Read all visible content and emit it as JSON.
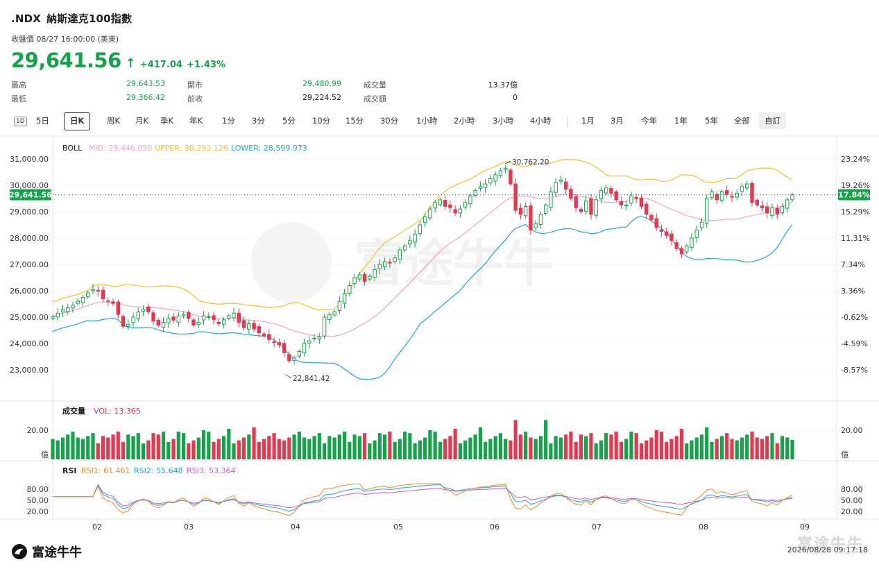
{
  "header": {
    "symbol": ".NDX",
    "name": "納斯達克100指數",
    "close_info": "收盤價 08/27 16:00:00 (美東)",
    "price": "29,641.56",
    "change": "+417.04",
    "change_pct": "+1.43%",
    "arrow": "↑"
  },
  "stats": {
    "high_label": "最高",
    "high": "29,643.53",
    "low_label": "最低",
    "low": "29,366.42",
    "open_label": "開市",
    "open": "29,480.99",
    "prev_label": "前收",
    "prev": "29,224.52",
    "vol_label": "成交量",
    "vol": "13.37億",
    "amt_label": "成交額",
    "amt": "0"
  },
  "tabs": {
    "icon": "1D",
    "items": [
      "5日",
      "日K",
      "周K",
      "月K",
      "季K",
      "年K",
      "1分",
      "3分",
      "5分",
      "10分",
      "15分",
      "30分",
      "1小時",
      "2小時",
      "3小時",
      "4小時",
      "1月",
      "3月",
      "今年",
      "1年",
      "5年",
      "全部",
      "自訂"
    ],
    "selected": "日K"
  },
  "colors": {
    "up": "#15a34a",
    "down": "#e8364e",
    "mid": "#f3a3c0",
    "upper": "#f2c02a",
    "lower": "#1ea5d6",
    "rsi1": "#f08a24",
    "rsi2": "#1ea5d6",
    "rsi3": "#c25ad8"
  },
  "labels": {
    "boll": "BOLL",
    "mid": "MID: 29,446.050",
    "upper": "UPPER: 30,292.126",
    "lower": "LOWER: 28,599.973",
    "vol_title": "成交量",
    "vol_value": "VOL: 13.365",
    "rsi": "RSI",
    "rsi1": "RSI1: 61.461",
    "rsi2": "RSI2: 55.648",
    "rsi3": "RSI3: 53.364",
    "max_note": "30,762.20",
    "min_note": "22,841.42",
    "cur_price_tag": "29,641.56",
    "cur_pct_tag": "17.84%",
    "vol_unit": "億"
  },
  "footer": {
    "logo": "富途牛牛",
    "timestamp": "2026/08/28 09:17:18",
    "watermark": "富途牛牛"
  },
  "chart_data": {
    "type": "candlestick",
    "y_ticks": [
      "31,000.00",
      "30,000.00",
      "29,000.00",
      "28,000.00",
      "27,000.00",
      "26,000.00",
      "25,000.00",
      "24,000.00",
      "23,000.00"
    ],
    "y_tick_values": [
      31000,
      30000,
      29000,
      28000,
      27000,
      26000,
      25000,
      24000,
      23000
    ],
    "pct_ticks": [
      "23.24%",
      "19.26%",
      "15.29%",
      "11.31%",
      "7.34%",
      "3.36%",
      "-0.62%",
      "-4.59%",
      "-8.57%"
    ],
    "ylim": [
      22500,
      31400
    ],
    "x_ticks": [
      "02",
      "03",
      "04",
      "05",
      "06",
      "07",
      "08",
      "09"
    ],
    "vol_ticks": [
      "20.00"
    ],
    "rsi_ticks": [
      "80.00",
      "50.00",
      "20.00"
    ],
    "closes": [
      25020,
      25150,
      25280,
      25350,
      25450,
      25600,
      25750,
      25920,
      26050,
      25980,
      25700,
      25600,
      25520,
      25100,
      24650,
      24720,
      25000,
      25200,
      25300,
      25200,
      24850,
      24700,
      24800,
      24950,
      24880,
      25050,
      25100,
      24950,
      24700,
      24800,
      25050,
      25020,
      24900,
      24750,
      24900,
      25050,
      25150,
      24800,
      24600,
      24750,
      24550,
      24400,
      24300,
      24150,
      24050,
      23950,
      23650,
      23350,
      23450,
      23700,
      24000,
      24100,
      24200,
      24250,
      25000,
      25100,
      25200,
      25600,
      25900,
      26200,
      26500,
      26600,
      26350,
      26550,
      26800,
      27000,
      27100,
      27050,
      27250,
      27550,
      27700,
      27900,
      28150,
      28500,
      28800,
      29100,
      29350,
      29450,
      29200,
      29150,
      28950,
      29100,
      29350,
      29600,
      29800,
      29950,
      30050,
      30250,
      30400,
      30550,
      30650,
      30050,
      29050,
      28900,
      29200,
      28300,
      28550,
      28900,
      29250,
      29750,
      30100,
      30200,
      29850,
      29500,
      29150,
      29000,
      29400,
      28900,
      29450,
      29800,
      29900,
      29700,
      29450,
      29250,
      29250,
      29600,
      29500,
      29200,
      28900,
      28700,
      28400,
      28250,
      28100,
      27900,
      27600,
      27400,
      27700,
      28000,
      28300,
      28600,
      29500,
      29750,
      29450,
      29750,
      29650,
      29550,
      29700,
      29950,
      30050,
      29350,
      29250,
      29150,
      28950,
      29150,
      28900,
      29200,
      29450,
      29641.56
    ],
    "max_high": 30762.2,
    "min_low": 22841.42,
    "last_volume": 13.365,
    "rsi_last": {
      "rsi1": 61.461,
      "rsi2": 55.648,
      "rsi3": 53.364
    }
  }
}
